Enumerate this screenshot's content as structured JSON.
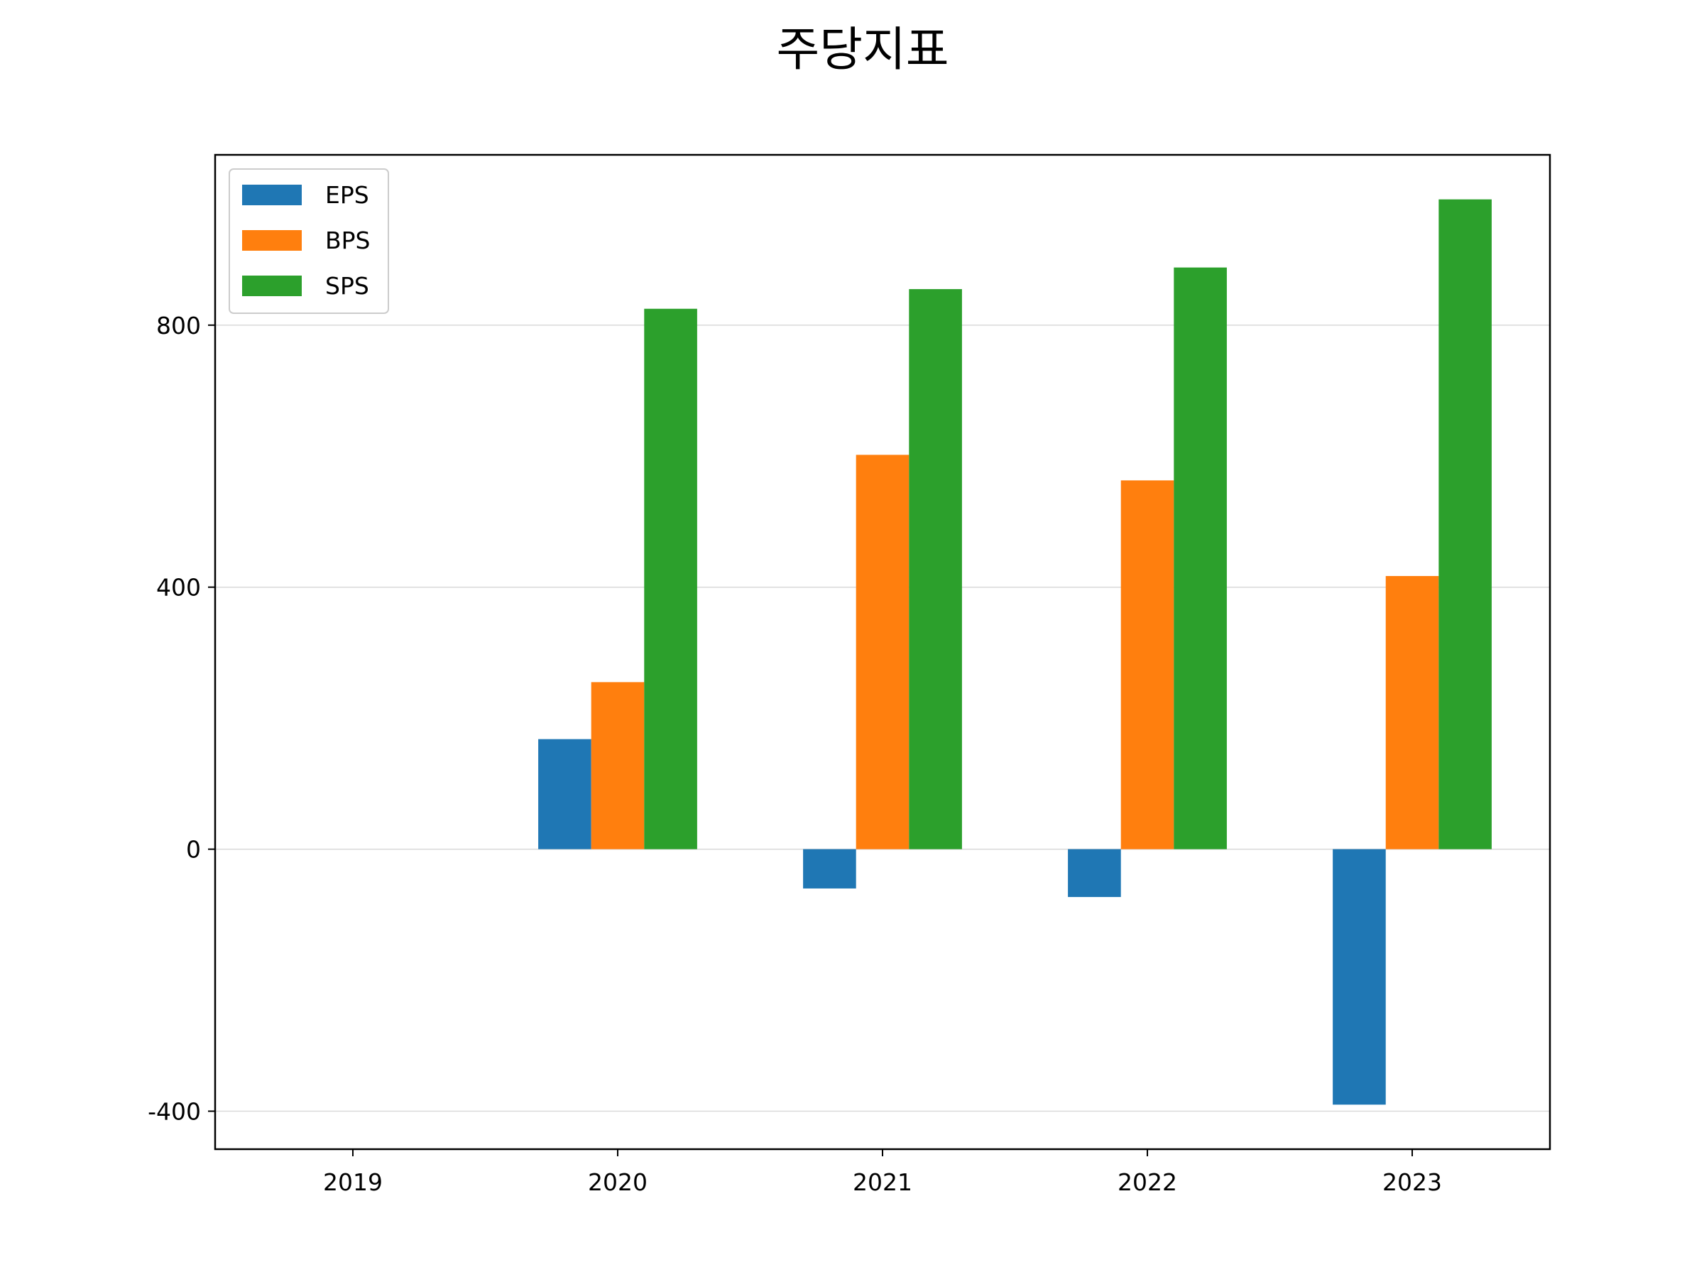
{
  "chart_data": {
    "type": "bar",
    "title": "주당지표",
    "xlabel": "",
    "ylabel": "",
    "categories": [
      "2019",
      "2020",
      "2021",
      "2022",
      "2023"
    ],
    "series": [
      {
        "name": "EPS",
        "color": "#1f77b4",
        "values": [
          0,
          168,
          -60,
          -73,
          -390
        ]
      },
      {
        "name": "BPS",
        "color": "#ff7f0e",
        "values": [
          0,
          255,
          602,
          563,
          417
        ]
      },
      {
        "name": "SPS",
        "color": "#2ca02c",
        "values": [
          0,
          825,
          855,
          888,
          992
        ]
      }
    ],
    "ylim": [
      -458,
      1060
    ],
    "yticks": [
      -400,
      0,
      400,
      800
    ],
    "ytick_labels": [
      "-400",
      "0",
      "400",
      "800"
    ],
    "grid": "y",
    "legend_position": "top-left"
  }
}
